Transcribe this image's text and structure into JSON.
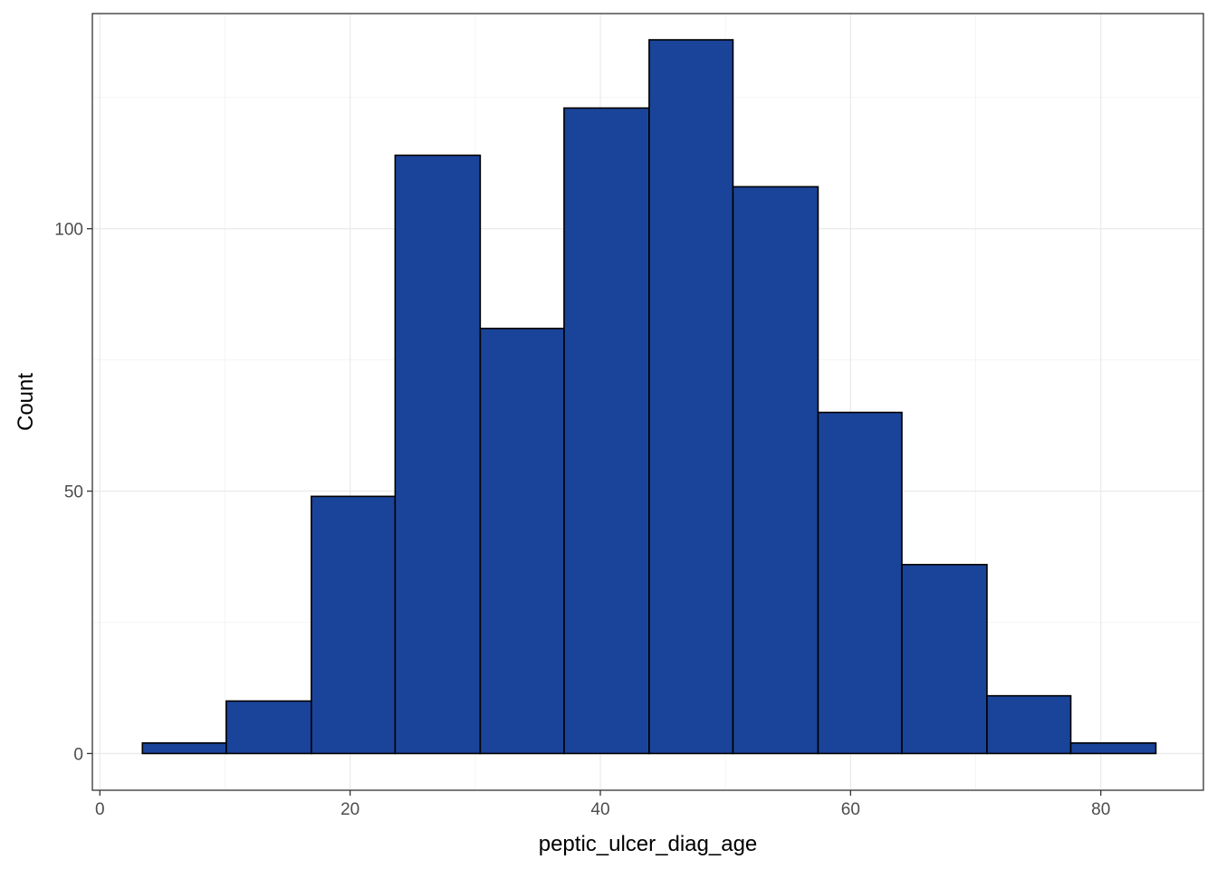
{
  "chart_data": {
    "type": "bar",
    "subtype": "histogram",
    "title": "",
    "xlabel": "peptic_ulcer_diag_age",
    "ylabel": "Count",
    "xlim": [
      -0.6,
      88.2
    ],
    "ylim": [
      -7,
      141
    ],
    "x_ticks": [
      0,
      20,
      40,
      60,
      80
    ],
    "y_ticks": [
      0,
      50,
      100
    ],
    "y_minor_ticks": [
      25,
      75,
      125
    ],
    "x_minor_ticks": [
      10,
      30,
      50,
      70
    ],
    "grid": true,
    "bins": [
      {
        "x0": 3.4,
        "x1": 10.1,
        "count": 2
      },
      {
        "x0": 10.1,
        "x1": 16.9,
        "count": 10
      },
      {
        "x0": 16.9,
        "x1": 23.6,
        "count": 49
      },
      {
        "x0": 23.6,
        "x1": 30.4,
        "count": 114
      },
      {
        "x0": 30.4,
        "x1": 37.1,
        "count": 81
      },
      {
        "x0": 37.1,
        "x1": 43.9,
        "count": 123
      },
      {
        "x0": 43.9,
        "x1": 50.6,
        "count": 136
      },
      {
        "x0": 50.6,
        "x1": 57.4,
        "count": 108
      },
      {
        "x0": 57.4,
        "x1": 64.1,
        "count": 65
      },
      {
        "x0": 64.1,
        "x1": 70.9,
        "count": 36
      },
      {
        "x0": 70.9,
        "x1": 77.6,
        "count": 11
      },
      {
        "x0": 77.6,
        "x1": 84.4,
        "count": 2
      }
    ],
    "colors": {
      "fill": "#1a4499",
      "outline": "#000000",
      "panel_border": "#333333"
    }
  }
}
